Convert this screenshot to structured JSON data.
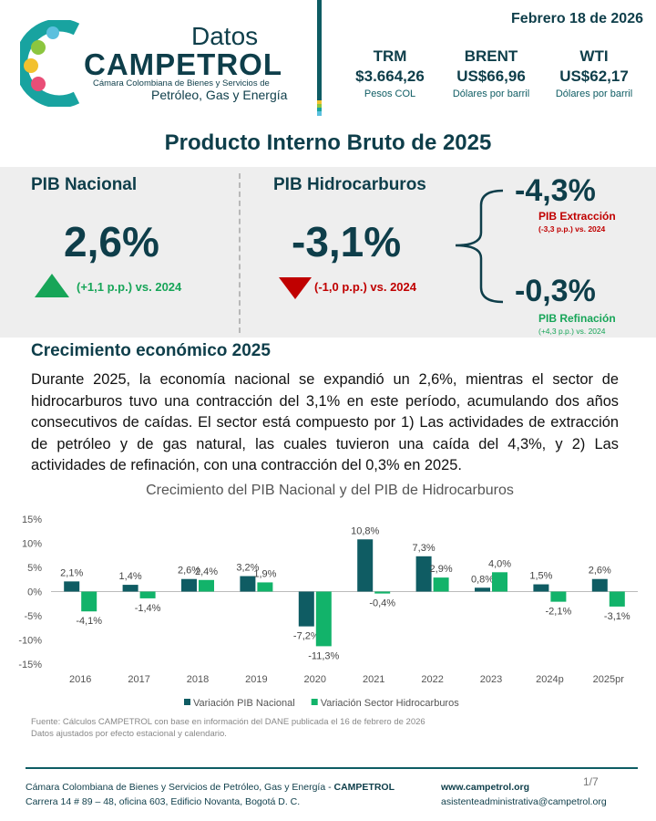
{
  "header": {
    "logo_top": "Datos",
    "logo_name": "CAMPETROL",
    "logo_line1": "Cámara Colombiana de Bienes y Servicios de",
    "logo_line2": "Petróleo, Gas y Energía",
    "date": "Febrero 18 de 2026",
    "indicators": [
      {
        "name": "TRM",
        "value": "$3.664,26",
        "unit": "Pesos COL"
      },
      {
        "name": "BRENT",
        "value": "US$66,96",
        "unit": "Dólares por barril"
      },
      {
        "name": "WTI",
        "value": "US$62,17",
        "unit": "Dólares por barril"
      }
    ]
  },
  "title": "Producto Interno Bruto de 2025",
  "panel": {
    "national": {
      "label": "PIB Nacional",
      "value": "2,6%",
      "change": "(+1,1 p.p.) vs. 2024"
    },
    "hydrocarbons": {
      "label": "PIB Hidrocarburos",
      "value": "-3,1%",
      "change": "(-1,0 p.p.) vs. 2024"
    },
    "extraction": {
      "value": "-4,3%",
      "label": "PIB Extracción",
      "change": "(-3,3 p.p.) vs. 2024"
    },
    "refining": {
      "value": "-0,3%",
      "label": "PIB Refinación",
      "change": "(+4,3 p.p.) vs. 2024"
    }
  },
  "section": {
    "heading": "Crecimiento económico 2025",
    "paragraph": "Durante 2025, la economía nacional se expandió un 2,6%, mientras el sector de hidrocarburos tuvo una contracción del 3,1% en este período, acumulando dos años consecutivos de caídas. El sector está compuesto por 1) Las actividades de extracción de petróleo y de gas natural, las cuales tuvieron una caída del 4,3%, y 2) Las actividades de refinación, con una contracción del 0,3% en 2025."
  },
  "chart_data": {
    "type": "bar",
    "title": "Crecimiento del PIB Nacional y del PIB de Hidrocarburos",
    "categories": [
      "2016",
      "2017",
      "2018",
      "2019",
      "2020",
      "2021",
      "2022",
      "2023",
      "2024p",
      "2025pr"
    ],
    "series": [
      {
        "name": "Variación PIB Nacional",
        "color": "#0f5c63",
        "values": [
          2.1,
          1.4,
          2.6,
          3.2,
          -7.2,
          10.8,
          7.3,
          0.8,
          1.5,
          2.6
        ],
        "value_labels": [
          "2,1%",
          "1,4%",
          "2,6%",
          "3,2%",
          "-7,2%",
          "10,8%",
          "7,3%",
          "0,8%",
          "1,5%",
          "2,6%"
        ]
      },
      {
        "name": "Variación Sector Hidrocarburos",
        "color": "#12b36a",
        "values": [
          -4.1,
          -1.4,
          2.4,
          1.9,
          -11.3,
          -0.4,
          2.9,
          4.0,
          -2.1,
          -3.1
        ],
        "value_labels": [
          "-4,1%",
          "-1,4%",
          "2,4%",
          "1,9%",
          "-11,3%",
          "-0,4%",
          "2,9%",
          "4,0%",
          "-2,1%",
          "-3,1%"
        ]
      }
    ],
    "ylim": [
      -15,
      15
    ],
    "yticks": [
      {
        "value": 15,
        "label": "15%"
      },
      {
        "value": 10,
        "label": "10%"
      },
      {
        "value": 5,
        "label": "5%"
      },
      {
        "value": 0,
        "label": "0%"
      },
      {
        "value": -5,
        "label": "-5%"
      },
      {
        "value": -10,
        "label": "-10%"
      },
      {
        "value": -15,
        "label": "-15%"
      }
    ],
    "legend": "bottom"
  },
  "source": [
    "Fuente: Cálculos CAMPETROL con base en información del DANE publicada el 16 de febrero de 2026",
    "Datos ajustados por efecto estacional y calendario."
  ],
  "footer": {
    "org": "Cámara Colombiana de Bienes y Servicios de Petróleo, Gas y Energía - ",
    "org_bold": "CAMPETROL",
    "address": "Carrera 14 # 89 – 48, oficina 603, Edificio Novanta, Bogotá D. C.",
    "web": "www.campetrol.org",
    "email": "asistenteadministrativa@campetrol.org",
    "page": "1/7"
  }
}
